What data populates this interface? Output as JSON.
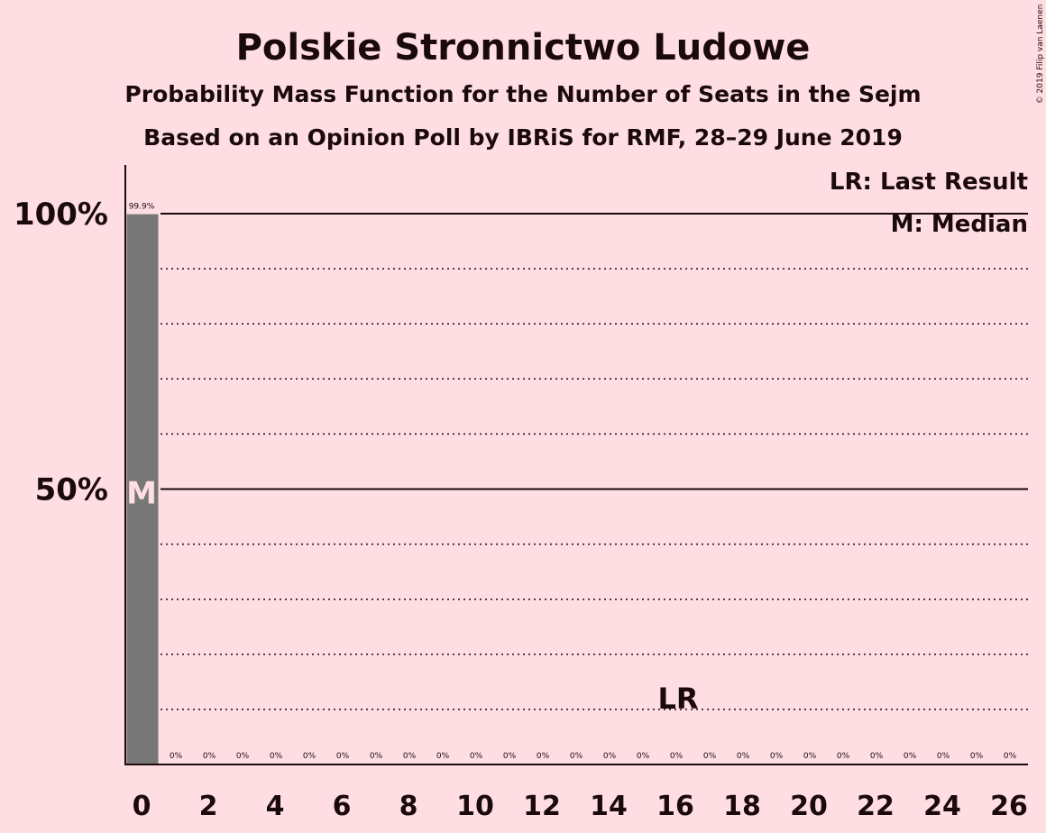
{
  "chart_data": {
    "type": "bar",
    "title": "Polskie Stronnictwo Ludowe",
    "subtitle": "Probability Mass Function for the Number of Seats in the Sejm",
    "subtitle2": "Based on an Opinion Poll by IBRiS for RMF, 28–29 June 2019",
    "x": [
      0,
      1,
      2,
      3,
      4,
      5,
      6,
      7,
      8,
      9,
      10,
      11,
      12,
      13,
      14,
      15,
      16,
      17,
      18,
      19,
      20,
      21,
      22,
      23,
      24,
      25,
      26
    ],
    "values": [
      99.9,
      0,
      0,
      0,
      0,
      0,
      0,
      0,
      0,
      0,
      0,
      0,
      0,
      0,
      0,
      0,
      0,
      0,
      0,
      0,
      0,
      0,
      0,
      0,
      0,
      0,
      0
    ],
    "data_labels": [
      "99.9%",
      "0%",
      "0%",
      "0%",
      "0%",
      "0%",
      "0%",
      "0%",
      "0%",
      "0%",
      "0%",
      "0%",
      "0%",
      "0%",
      "0%",
      "0%",
      "0%",
      "0%",
      "0%",
      "0%",
      "0%",
      "0%",
      "0%",
      "0%",
      "0%",
      "0%",
      "0%"
    ],
    "xticks": [
      "0",
      "2",
      "4",
      "6",
      "8",
      "10",
      "12",
      "14",
      "16",
      "18",
      "20",
      "22",
      "24",
      "26"
    ],
    "yticks": [
      {
        "value": 50,
        "label": "50%"
      },
      {
        "value": 100,
        "label": "100%"
      }
    ],
    "ylim": [
      0,
      110
    ],
    "minor_grid_step": 10,
    "median": {
      "x": 0,
      "label": "M"
    },
    "last_result": {
      "x": 16,
      "label": "LR"
    },
    "legend": [
      "LR: Last Result",
      "M: Median"
    ],
    "legend_position": "top-right",
    "copyright": "© 2019 Filip van Laenen",
    "colors": {
      "background": "#ffdee3",
      "bar": "#777777",
      "text": "#1a0a0e"
    }
  }
}
